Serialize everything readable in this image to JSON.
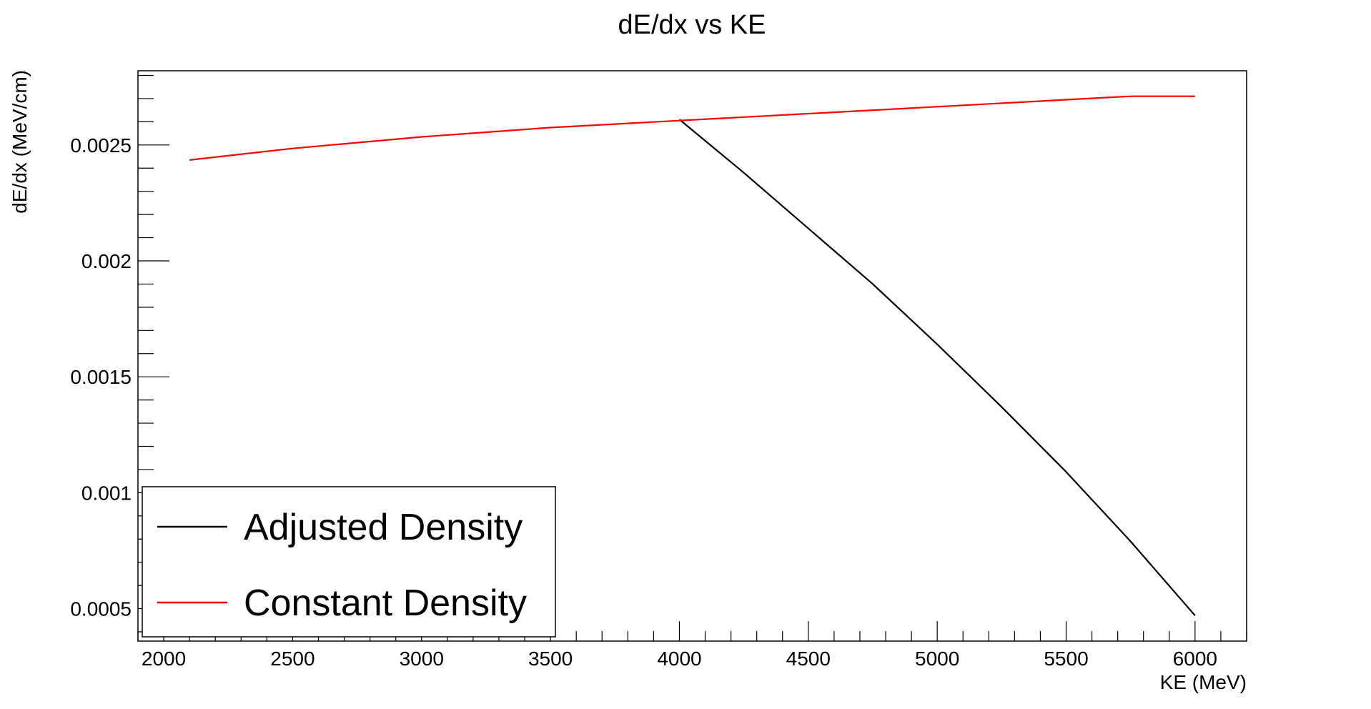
{
  "chart_data": {
    "type": "line",
    "title": "dE/dx vs KE",
    "xlabel": "KE (MeV)",
    "ylabel": "dE/dx (MeV/cm)",
    "xlim": [
      1900,
      6200
    ],
    "ylim": [
      0.00036,
      0.00282
    ],
    "x_ticks": [
      2000,
      2500,
      3000,
      3500,
      4000,
      4500,
      5000,
      5500,
      6000
    ],
    "x_tick_labels": [
      "2000",
      "2500",
      "3000",
      "3500",
      "4000",
      "4500",
      "5000",
      "5500",
      "6000"
    ],
    "y_ticks": [
      0.0005,
      0.001,
      0.0015,
      0.002,
      0.0025
    ],
    "y_tick_labels": [
      "0.0005",
      "0.001",
      "0.0015",
      "0.002",
      "0.0025"
    ],
    "grid": false,
    "legend_position": "bottom-left",
    "series": [
      {
        "name": "Adjusted Density",
        "color": "#000000",
        "x": [
          4000,
          4250,
          4500,
          4750,
          5000,
          5250,
          5500,
          5750,
          6000
        ],
        "y": [
          0.00261,
          0.00238,
          0.00214,
          0.0019,
          0.00164,
          0.00137,
          0.00109,
          0.00079,
          0.00047
        ]
      },
      {
        "name": "Constant Density",
        "color": "#ff0000",
        "x": [
          2100,
          2500,
          3000,
          3500,
          4000,
          4500,
          5000,
          5500,
          5750,
          6000
        ],
        "y": [
          0.002435,
          0.002485,
          0.002535,
          0.002575,
          0.002605,
          0.002635,
          0.002665,
          0.002695,
          0.00271,
          0.00271
        ]
      }
    ]
  }
}
